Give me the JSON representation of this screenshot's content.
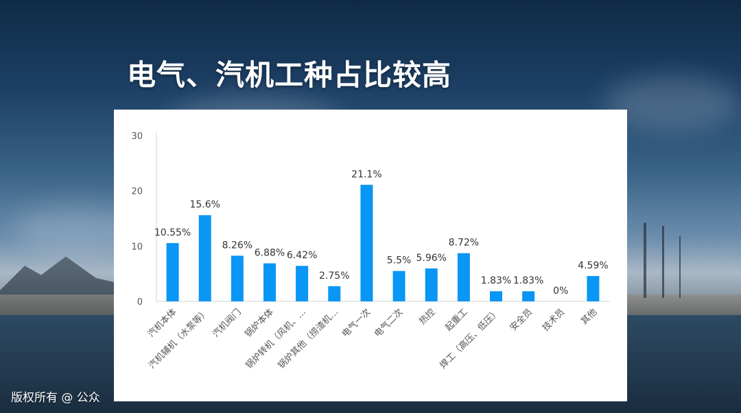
{
  "page": {
    "title": "电气、汽机工种占比较高",
    "copyright": "版权所有 @ 公众"
  },
  "colors": {
    "bar": "#0a96f5",
    "title_text": "#ffffff",
    "panel": "#ffffff",
    "axis_text": "#555555",
    "label_text": "#333333"
  },
  "chart_data": {
    "type": "bar",
    "title": "",
    "xlabel": "",
    "ylabel": "",
    "ylim": [
      0,
      30
    ],
    "yticks": [
      0,
      10,
      20,
      30
    ],
    "grid": false,
    "categories": [
      "汽机本体",
      "汽机辅机（水泵等）",
      "汽机阀门",
      "锅炉本体",
      "锅炉转机（风机、…",
      "锅炉其他（捞渣机…",
      "电气一次",
      "电气二次",
      "热控",
      "起重工",
      "焊工（高压、低压）",
      "安全员",
      "技术员",
      "其他"
    ],
    "values": [
      10.55,
      15.6,
      8.26,
      6.88,
      6.42,
      2.75,
      21.1,
      5.5,
      5.96,
      8.72,
      1.83,
      1.83,
      0,
      4.59
    ],
    "data_labels": [
      "10.55%",
      "15.6%",
      "8.26%",
      "6.88%",
      "6.42%",
      "2.75%",
      "21.1%",
      "5.5%",
      "5.96%",
      "8.72%",
      "1.83%",
      "1.83%",
      "0%",
      "4.59%"
    ]
  }
}
